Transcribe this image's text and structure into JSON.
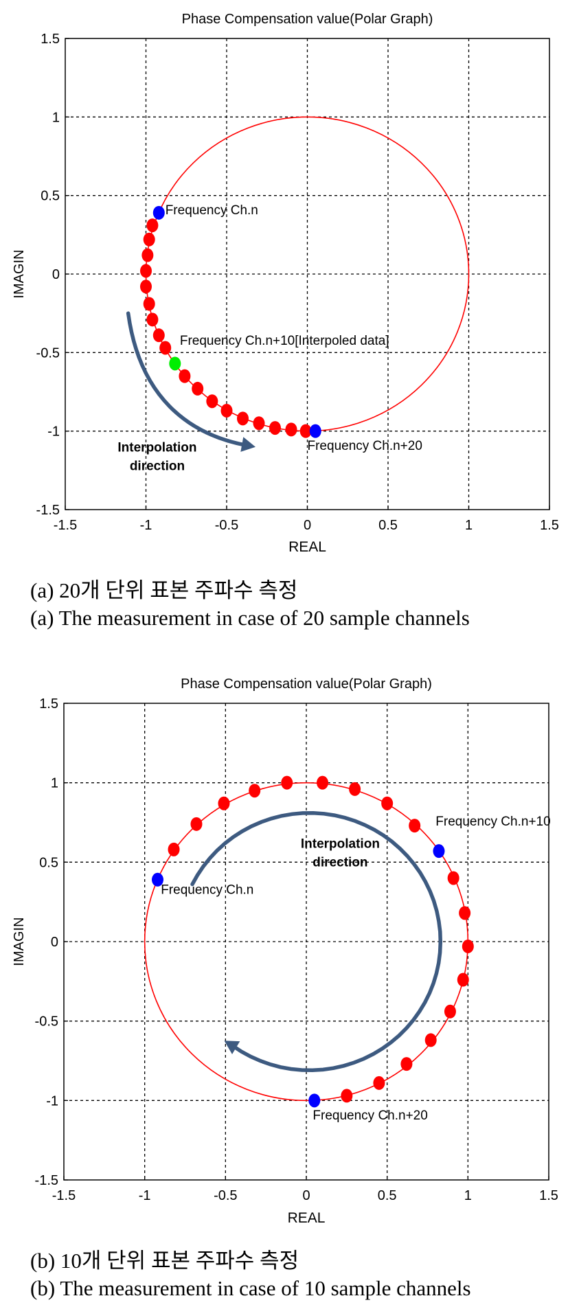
{
  "colors": {
    "circle": "#ff0000",
    "marker": "#ff0000",
    "endpoint": "#0000ff",
    "interpolated": "#00ee00",
    "arrow": "#3d5a80"
  },
  "charts": [
    {
      "title": "Phase Compensation value(Polar Graph)",
      "xlabel": "REAL",
      "ylabel": "IMAGIN",
      "x_ticks": [
        "-1.5",
        "-1",
        "-0.5",
        "0",
        "0.5",
        "1",
        "1.5"
      ],
      "y_ticks": [
        "1.5",
        "1",
        "0.5",
        "0",
        "-0.5",
        "-1",
        "-1.5"
      ],
      "annotations": [
        "Frequency Ch.n",
        "Frequency Ch.n+10[Interpoled data]",
        "Frequency Ch.n+20"
      ],
      "arrow_label_1": "Interpolation",
      "arrow_label_2": "direction",
      "caption_ko": "(a) 20개 단위 표본 주파수 측정",
      "caption_en": "(a) The measurement in case of 20 sample channels"
    },
    {
      "title": "Phase Compensation value(Polar Graph)",
      "xlabel": "REAL",
      "ylabel": "IMAGIN",
      "x_ticks": [
        "-1.5",
        "-1",
        "-0.5",
        "0",
        "0.5",
        "1",
        "1.5"
      ],
      "y_ticks": [
        "1.5",
        "1",
        "0.5",
        "0",
        "-0.5",
        "-1",
        "-1.5"
      ],
      "annotations": [
        "Frequency Ch.n+10",
        "Frequency Ch.n",
        "Frequency Ch.n+20"
      ],
      "arrow_label_1": "Interpolation",
      "arrow_label_2": "direction",
      "caption_ko": "(b) 10개 단위 표본 주파수 측정",
      "caption_en": "(b) The measurement in case of 10 sample channels"
    }
  ],
  "chart_data": [
    {
      "type": "scatter",
      "title": "Phase Compensation value(Polar Graph)",
      "xlabel": "REAL",
      "ylabel": "IMAGIN",
      "xlim": [
        -1.5,
        1.5
      ],
      "ylim": [
        -1.5,
        1.5
      ],
      "grid": true,
      "circle": {
        "center": [
          0.0,
          0.0
        ],
        "radius": 1.0
      },
      "series": [
        {
          "name": "Frequency Ch.n",
          "points": [
            [
              -0.92,
              0.39
            ]
          ]
        },
        {
          "points": [
            [
              -0.96,
              0.31
            ],
            [
              -0.98,
              0.22
            ],
            [
              -0.99,
              0.12
            ],
            [
              -1.0,
              0.02
            ],
            [
              -1.0,
              -0.08
            ],
            [
              -0.98,
              -0.19
            ],
            [
              -0.96,
              -0.29
            ],
            [
              -0.92,
              -0.39
            ],
            [
              -0.88,
              -0.47
            ],
            [
              -0.76,
              -0.65
            ],
            [
              -0.68,
              -0.73
            ],
            [
              -0.59,
              -0.81
            ],
            [
              -0.5,
              -0.87
            ],
            [
              -0.4,
              -0.92
            ],
            [
              -0.3,
              -0.95
            ],
            [
              -0.2,
              -0.98
            ],
            [
              -0.1,
              -0.99
            ],
            [
              -0.01,
              -1.0
            ]
          ]
        },
        {
          "name": "Frequency Ch.n+10[Interpoled data]",
          "points": [
            [
              -0.82,
              -0.57
            ]
          ]
        },
        {
          "name": "Frequency Ch.n+20",
          "points": [
            [
              0.05,
              -1.0
            ]
          ]
        }
      ],
      "annotations": [
        {
          "text": "Frequency Ch.n",
          "x": -0.88,
          "y": 0.38
        },
        {
          "text": "Frequency Ch.n+10[Interpoled data]",
          "x": -0.79,
          "y": -0.45
        },
        {
          "text": "Frequency Ch.n+20",
          "x": 0.0,
          "y": -1.12
        },
        {
          "text": "Interpolation direction",
          "x": -0.93,
          "y": -1.13
        }
      ]
    },
    {
      "type": "scatter",
      "title": "Phase Compensation value(Polar Graph)",
      "xlabel": "REAL",
      "ylabel": "IMAGIN",
      "xlim": [
        -1.5,
        1.5
      ],
      "ylim": [
        -1.5,
        1.5
      ],
      "grid": true,
      "circle": {
        "center": [
          0.0,
          0.0
        ],
        "radius": 1.0
      },
      "series": [
        {
          "name": "Frequency Ch.n",
          "points": [
            [
              -0.92,
              0.39
            ]
          ]
        },
        {
          "points": [
            [
              -0.82,
              0.58
            ],
            [
              -0.68,
              0.74
            ],
            [
              -0.51,
              0.87
            ],
            [
              -0.32,
              0.95
            ],
            [
              -0.12,
              1.0
            ],
            [
              0.1,
              1.0
            ],
            [
              0.3,
              0.96
            ],
            [
              0.5,
              0.87
            ],
            [
              0.67,
              0.73
            ],
            [
              0.91,
              0.4
            ],
            [
              0.98,
              0.18
            ],
            [
              1.0,
              -0.03
            ],
            [
              0.97,
              -0.24
            ],
            [
              0.89,
              -0.44
            ],
            [
              0.77,
              -0.62
            ],
            [
              0.62,
              -0.77
            ],
            [
              0.45,
              -0.89
            ],
            [
              0.25,
              -0.97
            ]
          ]
        },
        {
          "name": "Frequency Ch.n+10",
          "points": [
            [
              0.82,
              0.57
            ]
          ]
        },
        {
          "name": "Frequency Ch.n+20",
          "points": [
            [
              0.05,
              -1.0
            ]
          ]
        }
      ],
      "annotations": [
        {
          "text": "Frequency Ch.n+10",
          "x": 0.8,
          "y": 0.73
        },
        {
          "text": "Frequency Ch.n",
          "x": -0.9,
          "y": 0.3
        },
        {
          "text": "Frequency Ch.n+20",
          "x": 0.04,
          "y": -1.12
        },
        {
          "text": "Interpolation direction",
          "x": 0.21,
          "y": 0.59
        }
      ]
    }
  ]
}
